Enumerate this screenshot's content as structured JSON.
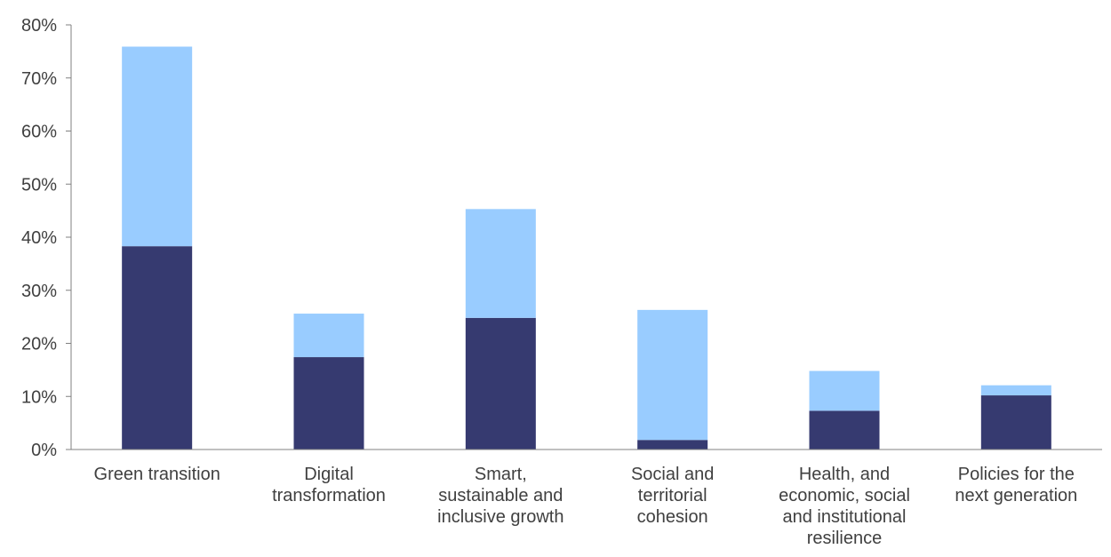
{
  "chart_data": {
    "type": "bar",
    "stacked": true,
    "categories": [
      [
        "Green transition"
      ],
      [
        "Digital",
        "transformation"
      ],
      [
        "Smart,",
        "sustainable and",
        "inclusive growth"
      ],
      [
        "Social and",
        "territorial",
        "cohesion"
      ],
      [
        "Health, and",
        "economic, social",
        "and institutional",
        "resilience"
      ],
      [
        "Policies for the",
        "next generation"
      ]
    ],
    "series": [
      {
        "color": "#363a70",
        "values": [
          38.3,
          17.4,
          24.8,
          1.8,
          7.3,
          10.2
        ]
      },
      {
        "color": "#99ccff",
        "values": [
          37.6,
          8.2,
          20.5,
          24.5,
          7.5,
          1.9
        ]
      }
    ],
    "ylim": [
      0,
      80
    ],
    "yticks": [
      "0%",
      "10%",
      "20%",
      "30%",
      "40%",
      "50%",
      "60%",
      "70%",
      "80%"
    ],
    "ytick_values": [
      0,
      10,
      20,
      30,
      40,
      50,
      60,
      70,
      80
    ],
    "grid": false,
    "legend": "none",
    "axis_color": "#808080"
  }
}
